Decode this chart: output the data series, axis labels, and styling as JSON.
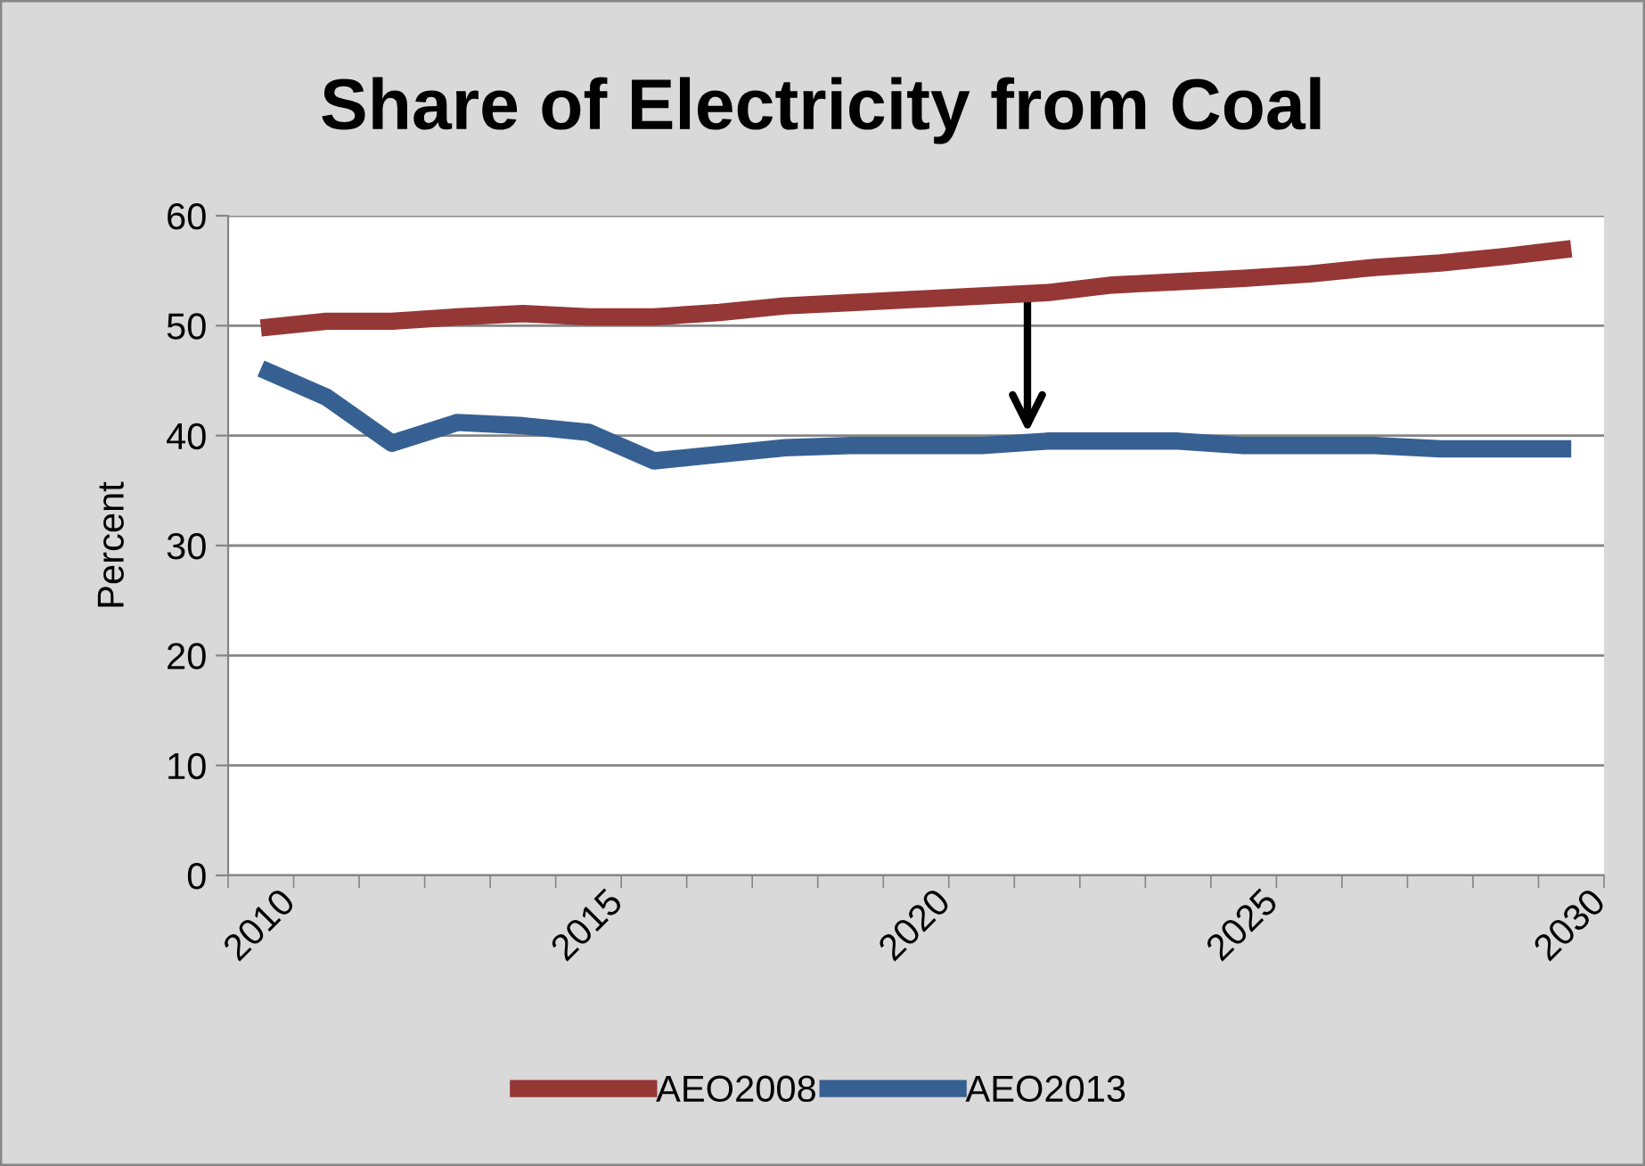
{
  "chart_data": {
    "type": "line",
    "title": "Share of Electricity from Coal",
    "ylabel": "Percent",
    "categories": [
      "2010",
      null,
      null,
      null,
      null,
      "2015",
      null,
      null,
      null,
      null,
      "2020",
      null,
      null,
      null,
      null,
      "2025",
      null,
      null,
      null,
      null,
      "2030"
    ],
    "series": [
      {
        "name": "AEO2008",
        "color": "#953735",
        "values": [
          49.8,
          50.4,
          50.4,
          50.8,
          51.1,
          50.8,
          50.8,
          51.2,
          51.8,
          52.1,
          52.4,
          52.7,
          53.0,
          53.7,
          54.0,
          54.3,
          54.7,
          55.3,
          55.7,
          56.3,
          57.0
        ]
      },
      {
        "name": "AEO2013",
        "color": "#376092",
        "values": [
          46.1,
          43.5,
          39.3,
          41.2,
          40.9,
          40.3,
          37.7,
          38.3,
          38.9,
          39.1,
          39.1,
          39.1,
          39.5,
          39.5,
          39.5,
          39.1,
          39.1,
          39.1,
          38.8,
          38.8,
          38.8
        ]
      }
    ],
    "ylim": [
      0,
      60
    ],
    "yticks": [
      0,
      10,
      20,
      30,
      40,
      50,
      60
    ],
    "grid": "y",
    "legend": "bottom",
    "marker": "none",
    "line_style": "solid"
  }
}
